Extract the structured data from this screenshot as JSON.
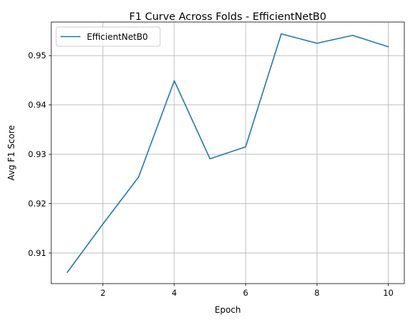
{
  "chart_data": {
    "type": "line",
    "title": "F1 Curve Across Folds - EfficientNetB0",
    "xlabel": "Epoch",
    "ylabel": "Avg F1 Score",
    "xlim": [
      0.55,
      10.45
    ],
    "ylim": [
      0.9038,
      0.9568
    ],
    "xticks": [
      2,
      4,
      6,
      8,
      10
    ],
    "xtick_labels": [
      "2",
      "4",
      "6",
      "8",
      "10"
    ],
    "yticks": [
      0.91,
      0.92,
      0.93,
      0.94,
      0.95
    ],
    "ytick_labels": [
      "0.91",
      "0.92",
      "0.93",
      "0.94",
      "0.95"
    ],
    "grid": true,
    "legend_position": "top-left",
    "series": [
      {
        "name": "EfficientNetB0",
        "color": "#1f77b4",
        "x": [
          1,
          2,
          3,
          4,
          5,
          6,
          7,
          8,
          9,
          10
        ],
        "y": [
          0.9061,
          0.9159,
          0.9254,
          0.9449,
          0.9291,
          0.9315,
          0.9544,
          0.9525,
          0.9541,
          0.9518
        ]
      }
    ]
  }
}
